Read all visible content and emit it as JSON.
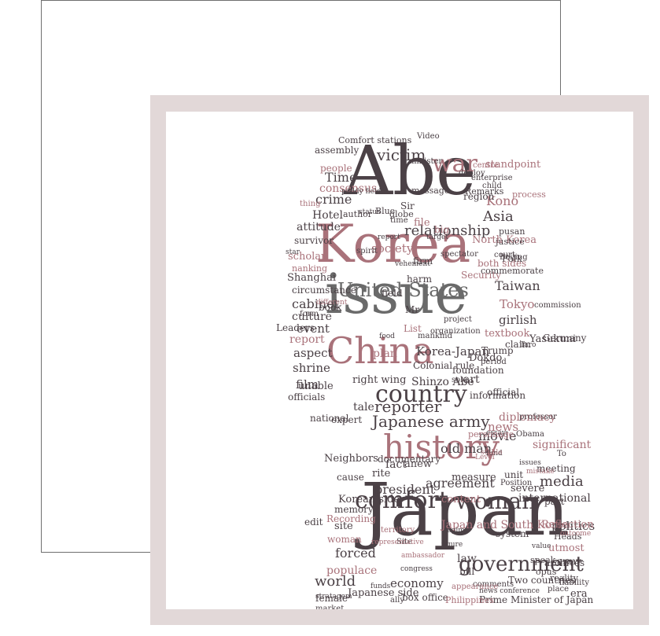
{
  "image": {
    "frame_color": "#e2d8d8",
    "ink_dark": "#4b4146",
    "ink_rose": "#a9727a",
    "ink_grey": "#6a6a6a"
  },
  "cloud": {
    "words": [
      {
        "text": "Japan",
        "tone": "dark"
      },
      {
        "text": "Abe",
        "tone": "dark"
      },
      {
        "text": "Korea",
        "tone": "rose"
      },
      {
        "text": "issue",
        "tone": "grey"
      },
      {
        "text": "China",
        "tone": "rose"
      },
      {
        "text": "history",
        "tone": "rose"
      },
      {
        "text": "comfort",
        "tone": "dark"
      },
      {
        "text": "woman",
        "tone": "dark"
      },
      {
        "text": "country",
        "tone": "dark"
      },
      {
        "text": "United States",
        "tone": "grey"
      },
      {
        "text": "government",
        "tone": "dark"
      },
      {
        "text": "Japanese army",
        "tone": "dark"
      },
      {
        "text": "reporter",
        "tone": "dark"
      },
      {
        "text": "war",
        "tone": "rose"
      },
      {
        "text": "victim",
        "tone": "dark"
      },
      {
        "text": "Time",
        "tone": "dark"
      },
      {
        "text": "crime",
        "tone": "dark"
      },
      {
        "text": "Hotel",
        "tone": "dark"
      },
      {
        "text": "Asia",
        "tone": "dark"
      },
      {
        "text": "relationship",
        "tone": "dark"
      },
      {
        "text": "society",
        "tone": "rose"
      },
      {
        "text": "Kono",
        "tone": "rose"
      },
      {
        "text": "Taiwan",
        "tone": "dark"
      },
      {
        "text": "Tokyo",
        "tone": "rose"
      },
      {
        "text": "girlish",
        "tone": "dark"
      },
      {
        "text": "textbook",
        "tone": "rose"
      },
      {
        "text": "cabinet",
        "tone": "dark"
      },
      {
        "text": "culture",
        "tone": "dark"
      },
      {
        "text": "event",
        "tone": "dark"
      },
      {
        "text": "report",
        "tone": "rose"
      },
      {
        "text": "aspect",
        "tone": "dark"
      },
      {
        "text": "shrine",
        "tone": "dark"
      },
      {
        "text": "film",
        "tone": "dark"
      },
      {
        "text": "plan",
        "tone": "rose"
      },
      {
        "text": "Korea-Japan",
        "tone": "dark"
      },
      {
        "text": "Shinzo Abe",
        "tone": "dark"
      },
      {
        "text": "right wing",
        "tone": "dark"
      },
      {
        "text": "tale",
        "tone": "dark"
      },
      {
        "text": "news",
        "tone": "rose"
      },
      {
        "text": "diplomacy",
        "tone": "rose"
      },
      {
        "text": "old man",
        "tone": "dark"
      },
      {
        "text": "movie",
        "tone": "dark"
      },
      {
        "text": "media",
        "tone": "dark"
      },
      {
        "text": "agreement",
        "tone": "dark"
      },
      {
        "text": "president",
        "tone": "dark"
      },
      {
        "text": "content",
        "tone": "rose"
      },
      {
        "text": "international",
        "tone": "dark"
      },
      {
        "text": "Japan and South Korea",
        "tone": "rose"
      },
      {
        "text": "politics",
        "tone": "dark"
      },
      {
        "text": "forced",
        "tone": "dark"
      },
      {
        "text": "populace",
        "tone": "rose"
      },
      {
        "text": "world",
        "tone": "dark"
      },
      {
        "text": "economy",
        "tone": "dark"
      },
      {
        "text": "Japanese side",
        "tone": "dark"
      },
      {
        "text": "box office",
        "tone": "dark"
      },
      {
        "text": "Prime Minister of Japan",
        "tone": "dark"
      },
      {
        "text": "Philippines",
        "tone": "rose"
      },
      {
        "text": "era",
        "tone": "dark"
      },
      {
        "text": "Korean side",
        "tone": "dark"
      },
      {
        "text": "site",
        "tone": "dark"
      },
      {
        "text": "woman",
        "tone": "rose"
      },
      {
        "text": "memory",
        "tone": "dark"
      },
      {
        "text": "female",
        "tone": "dark"
      },
      {
        "text": "stratagem",
        "tone": "dark"
      },
      {
        "text": "market",
        "tone": "dark"
      },
      {
        "text": "law",
        "tone": "dark"
      },
      {
        "text": "bill",
        "tone": "dark"
      },
      {
        "text": "Two countries",
        "tone": "dark"
      },
      {
        "text": "news conference",
        "tone": "dark"
      },
      {
        "text": "comments",
        "tone": "dark"
      },
      {
        "text": "Comfort stations",
        "tone": "dark"
      },
      {
        "text": "people",
        "tone": "rose"
      },
      {
        "text": "consensus",
        "tone": "rose"
      },
      {
        "text": "attitude",
        "tone": "dark"
      },
      {
        "text": "survivor",
        "tone": "dark"
      },
      {
        "text": "scholar",
        "tone": "rose"
      },
      {
        "text": "nanking",
        "tone": "rose"
      },
      {
        "text": "Shanghai",
        "tone": "dark"
      },
      {
        "text": "circumstance",
        "tone": "dark"
      },
      {
        "text": "officials",
        "tone": "dark"
      },
      {
        "text": "Leaders",
        "tone": "dark"
      },
      {
        "text": "unable",
        "tone": "dark"
      },
      {
        "text": "expert",
        "tone": "dark"
      },
      {
        "text": "national",
        "tone": "dark"
      },
      {
        "text": "fact",
        "tone": "dark"
      },
      {
        "text": "anew",
        "tone": "dark"
      },
      {
        "text": "rite",
        "tone": "dark"
      },
      {
        "text": "measure",
        "tone": "dark"
      },
      {
        "text": "significant",
        "tone": "rose"
      },
      {
        "text": "meeting",
        "tone": "dark"
      },
      {
        "text": "severe",
        "tone": "dark"
      },
      {
        "text": "unit",
        "tone": "dark"
      },
      {
        "text": "part",
        "tone": "dark"
      },
      {
        "text": "utmost",
        "tone": "rose"
      },
      {
        "text": "archives",
        "tone": "dark"
      },
      {
        "text": "Reflection",
        "tone": "rose"
      },
      {
        "text": "Yasukuni",
        "tone": "dark"
      },
      {
        "text": "North Korea",
        "tone": "rose"
      },
      {
        "text": "commission",
        "tone": "dark"
      },
      {
        "text": "Folk",
        "tone": "dark"
      },
      {
        "text": "both sides",
        "tone": "rose"
      },
      {
        "text": "Security",
        "tone": "rose"
      },
      {
        "text": "Dokdo",
        "tone": "dark"
      },
      {
        "text": "art",
        "tone": "dark"
      },
      {
        "text": "information",
        "tone": "dark"
      },
      {
        "text": "official",
        "tone": "dark"
      },
      {
        "text": "Trump",
        "tone": "dark"
      },
      {
        "text": "claim",
        "tone": "dark"
      },
      {
        "text": "Germany",
        "tone": "dark"
      },
      {
        "text": "book",
        "tone": "dark"
      },
      {
        "text": "field",
        "tone": "dark"
      },
      {
        "text": "firm",
        "tone": "dark"
      },
      {
        "text": "harm",
        "tone": "dark"
      },
      {
        "text": "spirit",
        "tone": "dark"
      },
      {
        "text": "author",
        "tone": "dark"
      },
      {
        "text": "globe",
        "tone": "dark"
      },
      {
        "text": "time",
        "tone": "dark"
      },
      {
        "text": "Blue",
        "tone": "dark"
      },
      {
        "text": "Sir",
        "tone": "dark"
      },
      {
        "text": "file",
        "tone": "rose"
      },
      {
        "text": "big",
        "tone": "rose"
      },
      {
        "text": "region",
        "tone": "dark"
      },
      {
        "text": "standpoint",
        "tone": "rose"
      },
      {
        "text": "centre",
        "tone": "rose"
      },
      {
        "text": "Remarks",
        "tone": "dark"
      },
      {
        "text": "process",
        "tone": "rose"
      },
      {
        "text": "justice",
        "tone": "dark"
      },
      {
        "text": "pusan",
        "tone": "dark"
      },
      {
        "text": "court",
        "tone": "dark"
      },
      {
        "text": "commemorate",
        "tone": "dark"
      },
      {
        "text": "Beijing",
        "tone": "dark"
      },
      {
        "text": "army",
        "tone": "dark"
      },
      {
        "text": "Heads",
        "tone": "dark"
      },
      {
        "text": "liability",
        "tone": "dark"
      },
      {
        "text": "opus",
        "tone": "dark"
      },
      {
        "text": "speak",
        "tone": "dark"
      },
      {
        "text": "reality",
        "tone": "dark"
      },
      {
        "text": "place",
        "tone": "dark"
      },
      {
        "text": "Neighbors",
        "tone": "dark"
      },
      {
        "text": "Recording",
        "tone": "rose"
      },
      {
        "text": "edit",
        "tone": "dark"
      },
      {
        "text": "cause",
        "tone": "dark"
      },
      {
        "text": "documentary",
        "tone": "dark"
      },
      {
        "text": "Position",
        "tone": "dark"
      },
      {
        "text": "To",
        "tone": "dark"
      },
      {
        "text": "Obama",
        "tone": "dark"
      },
      {
        "text": "professor",
        "tone": "dark"
      },
      {
        "text": "essay",
        "tone": "dark"
      },
      {
        "text": "personage",
        "tone": "rose"
      },
      {
        "text": "Colonial rule",
        "tone": "dark"
      },
      {
        "text": "Mr",
        "tone": "dark"
      },
      {
        "text": "List",
        "tone": "rose"
      },
      {
        "text": "mankind",
        "tone": "dark"
      },
      {
        "text": "foundation",
        "tone": "dark"
      },
      {
        "text": "period",
        "tone": "dark"
      },
      {
        "text": "sole",
        "tone": "dark"
      },
      {
        "text": "outcome",
        "tone": "rose"
      },
      {
        "text": "minister",
        "tone": "dark"
      },
      {
        "text": "deploy",
        "tone": "dark"
      },
      {
        "text": "message",
        "tone": "dark"
      },
      {
        "text": "enterprise",
        "tone": "dark"
      },
      {
        "text": "Video",
        "tone": "dark"
      },
      {
        "text": "assembly",
        "tone": "dark"
      },
      {
        "text": "status",
        "tone": "dark"
      },
      {
        "text": "thing",
        "tone": "rose"
      },
      {
        "text": "paddy field",
        "tone": "dark"
      },
      {
        "text": "spectator",
        "tone": "dark"
      },
      {
        "text": "child",
        "tone": "dark"
      },
      {
        "text": "project",
        "tone": "dark"
      },
      {
        "text": "organization",
        "tone": "dark"
      },
      {
        "text": "vehement",
        "tone": "dark"
      },
      {
        "text": "star",
        "tone": "dark"
      },
      {
        "text": "form",
        "tone": "dark"
      },
      {
        "text": "Site",
        "tone": "dark"
      },
      {
        "text": "ally",
        "tone": "dark"
      },
      {
        "text": "ambassador",
        "tone": "rose"
      },
      {
        "text": "territory",
        "tone": "rose"
      },
      {
        "text": "representative",
        "tone": "rose"
      },
      {
        "text": "appearance",
        "tone": "rose"
      },
      {
        "text": "congress",
        "tone": "dark"
      },
      {
        "text": "figure",
        "tone": "dark"
      },
      {
        "text": "regime",
        "tone": "dark"
      },
      {
        "text": "system",
        "tone": "dark"
      },
      {
        "text": "issues",
        "tone": "dark"
      },
      {
        "text": "value",
        "tone": "dark"
      },
      {
        "text": "fund",
        "tone": "dark"
      },
      {
        "text": "different",
        "tone": "rose"
      },
      {
        "text": "target",
        "tone": "dark"
      },
      {
        "text": "report",
        "tone": "dark"
      },
      {
        "text": "food",
        "tone": "dark"
      },
      {
        "text": "Taro",
        "tone": "dark"
      },
      {
        "text": "Level",
        "tone": "rose"
      },
      {
        "text": "stable",
        "tone": "rose"
      },
      {
        "text": "mistake",
        "tone": "rose"
      },
      {
        "text": "funds",
        "tone": "dark"
      },
      {
        "text": "honourable",
        "tone": "dark"
      },
      {
        "text": "data",
        "tone": "dark"
      },
      {
        "text": "strength",
        "tone": "rose"
      },
      {
        "text": "opinion",
        "tone": "dark"
      },
      {
        "text": "manner",
        "tone": "dark"
      },
      {
        "text": "symbol",
        "tone": "dark"
      },
      {
        "text": "affairs",
        "tone": "rose"
      },
      {
        "text": "succeed",
        "tone": "dark"
      }
    ]
  }
}
